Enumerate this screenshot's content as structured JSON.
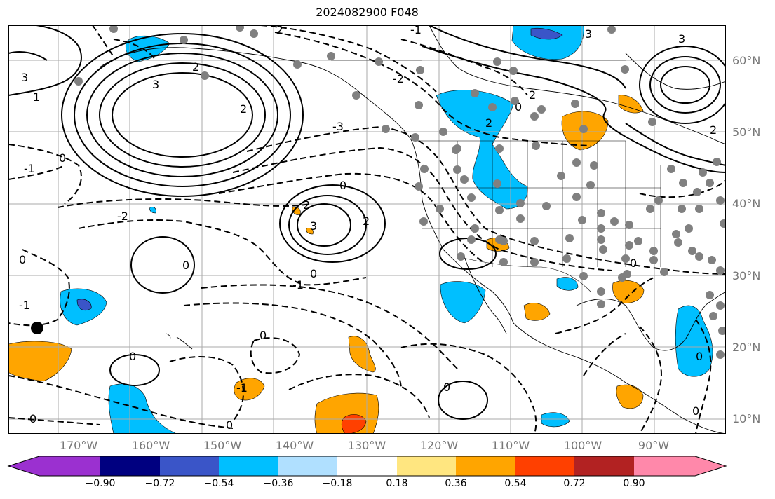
{
  "title": "2024082900 F048",
  "map": {
    "lat_labels": [
      {
        "label": "60°N",
        "lat": 60
      },
      {
        "label": "50°N",
        "lat": 50
      },
      {
        "label": "40°N",
        "lat": 40
      },
      {
        "label": "30°N",
        "lat": 30
      },
      {
        "label": "20°N",
        "lat": 20
      },
      {
        "label": "10°N",
        "lat": 10
      }
    ],
    "lon_labels": [
      {
        "label": "170°W",
        "lon": -170
      },
      {
        "label": "160°W",
        "lon": -160
      },
      {
        "label": "150°W",
        "lon": -150
      },
      {
        "label": "140°W",
        "lon": -140
      },
      {
        "label": "130°W",
        "lon": -130
      },
      {
        "label": "120°W",
        "lon": -120
      },
      {
        "label": "110°W",
        "lon": -110
      },
      {
        "label": "100°W",
        "lon": -100
      },
      {
        "label": "90°W",
        "lon": -90
      }
    ],
    "extent": {
      "lon_min": -177,
      "lon_max": -77,
      "lat_min": 8,
      "lat_max": 65
    }
  },
  "contour_labels": [
    "3",
    "2",
    "1",
    "0",
    "-1",
    "-2",
    "-3"
  ],
  "colorbar": {
    "ticks": [
      "−0.90",
      "−0.72",
      "−0.54",
      "−0.36",
      "−0.18",
      "0.18",
      "0.36",
      "0.54",
      "0.72",
      "0.90"
    ],
    "colors": [
      "#9b30d0",
      "#000080",
      "#3a55c8",
      "#00bfff",
      "#b0e0ff",
      "#ffffff",
      "#ffe680",
      "#ffa500",
      "#ff4000",
      "#b22222",
      "#ff88aa"
    ]
  }
}
